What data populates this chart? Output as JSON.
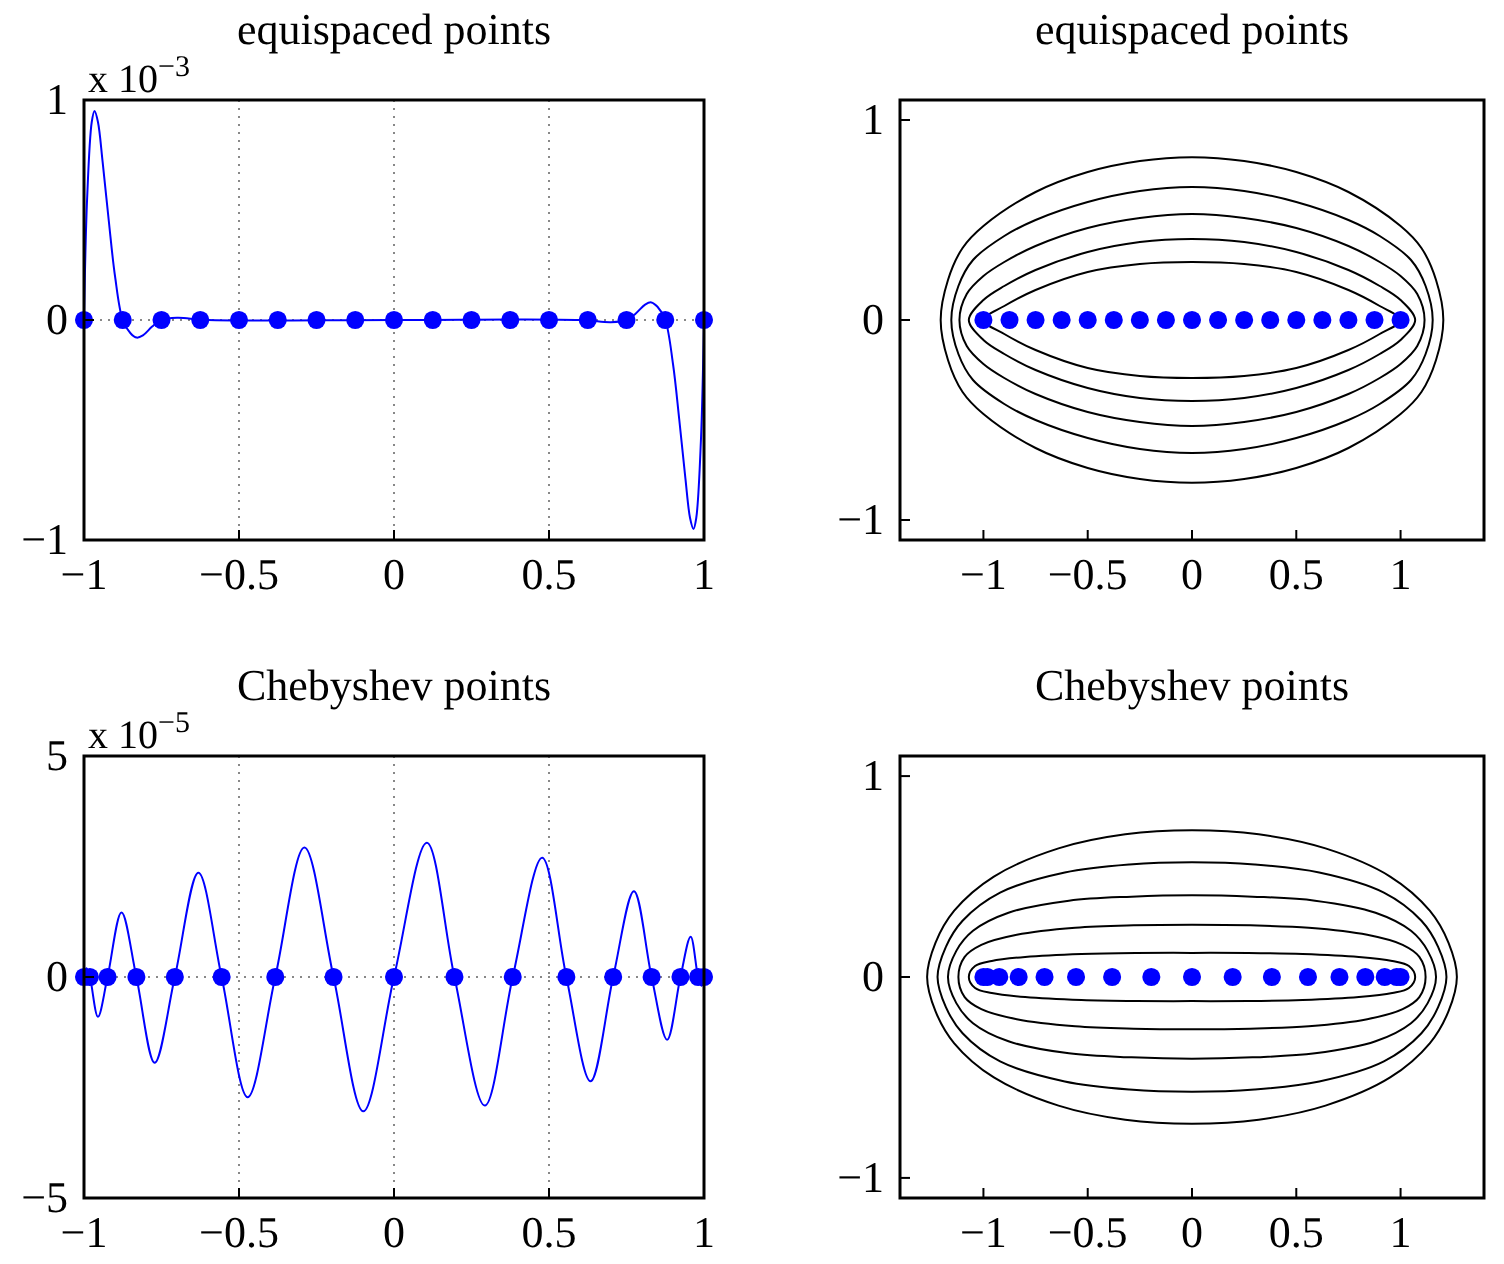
{
  "chart_data": [
    {
      "type": "line",
      "title": "equispaced points",
      "annotations": [
        "x 10$^{−3}$"
      ],
      "xlim": [
        -1,
        1
      ],
      "ylim": [
        -1,
        1
      ],
      "xticks": [
        -1,
        -0.5,
        0,
        0.5,
        1
      ],
      "yticks": [
        -1,
        0,
        1
      ],
      "grid": true,
      "series": [
        {
          "color": "#0000ff",
          "x": [
            -1,
            -0.99,
            -0.975,
            -0.966,
            -0.955,
            -0.94,
            -0.92,
            -0.9,
            -0.875,
            -0.85,
            -0.83,
            -0.81,
            -0.78,
            -0.75,
            -0.7,
            -0.6,
            0,
            0.6,
            0.7,
            0.75,
            0.78,
            0.81,
            0.83,
            0.85,
            0.875,
            0.9,
            0.92,
            0.94,
            0.955,
            0.966,
            0.975,
            0.99,
            1
          ],
          "values": [
            0,
            0.55,
            0.9,
            0.95,
            0.9,
            0.72,
            0.45,
            0.2,
            0,
            -0.06,
            -0.08,
            -0.07,
            -0.03,
            0,
            0.01,
            0,
            0,
            0,
            -0.01,
            0,
            0.03,
            0.07,
            0.08,
            0.06,
            0,
            -0.2,
            -0.45,
            -0.72,
            -0.9,
            -0.95,
            -0.9,
            -0.55,
            0
          ]
        },
        {
          "type": "scatter",
          "marker": "circle",
          "color": "#0000ff",
          "x": [
            -1,
            -0.875,
            -0.75,
            -0.625,
            -0.5,
            -0.375,
            -0.25,
            -0.125,
            0,
            0.125,
            0.25,
            0.375,
            0.5,
            0.625,
            0.75,
            0.875,
            1
          ],
          "values": [
            0,
            0,
            0,
            0,
            0,
            0,
            0,
            0,
            0,
            0,
            0,
            0,
            0,
            0,
            0,
            0,
            0
          ]
        }
      ]
    },
    {
      "type": "scatter",
      "title": "equispaced points",
      "xlim": [
        -1.4,
        1.4
      ],
      "ylim": [
        -1.1,
        1.1
      ],
      "xticks": [
        -1,
        -0.5,
        0,
        0.5,
        1
      ],
      "yticks": [
        -1,
        0,
        1
      ],
      "series": [
        {
          "marker": "circle",
          "color": "#0000ff",
          "x": [
            -1,
            -0.875,
            -0.75,
            -0.625,
            -0.5,
            -0.375,
            -0.25,
            -0.125,
            0,
            0.125,
            0.25,
            0.375,
            0.5,
            0.625,
            0.75,
            0.875,
            1
          ],
          "values": [
            0,
            0,
            0,
            0,
            0,
            0,
            0,
            0,
            0,
            0,
            0,
            0,
            0,
            0,
            0,
            0,
            0
          ]
        }
      ]
    },
    {
      "type": "line",
      "title": "Chebyshev points",
      "annotations": [
        "x 10$^{−5}$"
      ],
      "xlim": [
        -1,
        1
      ],
      "ylim": [
        -5,
        5
      ],
      "xticks": [
        -1,
        -0.5,
        0,
        0.5,
        1
      ],
      "yticks": [
        -5,
        0,
        5
      ],
      "grid": true,
      "series": [
        {
          "color": "#0000ff",
          "x": [
            -1,
            -0.992,
            -0.981,
            -0.955,
            -0.924,
            -0.879,
            -0.831,
            -0.772,
            -0.707,
            -0.631,
            -0.556,
            -0.472,
            -0.383,
            -0.289,
            -0.195,
            -0.099,
            0,
            0.106,
            0.195,
            0.293,
            0.383,
            0.478,
            0.556,
            0.634,
            0.707,
            0.774,
            0.831,
            0.881,
            0.924,
            0.957,
            0.981,
            0.992,
            1
          ],
          "values": [
            0,
            0.2,
            0,
            -0.9,
            0,
            1.46,
            0,
            -1.94,
            0,
            2.36,
            0,
            -2.72,
            0,
            2.93,
            0,
            -3.04,
            0,
            3.04,
            0,
            -2.91,
            0,
            2.7,
            0,
            -2.36,
            0,
            1.94,
            0,
            -1.42,
            0,
            0.91,
            0,
            -0.2,
            0
          ]
        },
        {
          "type": "scatter",
          "marker": "circle",
          "color": "#0000ff",
          "x": [
            -1,
            -0.981,
            -0.924,
            -0.831,
            -0.707,
            -0.556,
            -0.383,
            -0.195,
            0,
            0.195,
            0.383,
            0.556,
            0.707,
            0.831,
            0.924,
            0.981,
            1
          ],
          "values": [
            0,
            0,
            0,
            0,
            0,
            0,
            0,
            0,
            0,
            0,
            0,
            0,
            0,
            0,
            0,
            0,
            0
          ]
        }
      ]
    },
    {
      "type": "scatter",
      "title": "Chebyshev points",
      "xlim": [
        -1.4,
        1.4
      ],
      "ylim": [
        -1.1,
        1.1
      ],
      "xticks": [
        -1,
        -0.5,
        0,
        0.5,
        1
      ],
      "yticks": [
        -1,
        0,
        1
      ],
      "series": [
        {
          "marker": "circle",
          "color": "#0000ff",
          "x": [
            -1,
            -0.981,
            -0.924,
            -0.831,
            -0.707,
            -0.556,
            -0.383,
            -0.195,
            0,
            0.195,
            0.383,
            0.556,
            0.707,
            0.831,
            0.924,
            0.981,
            1
          ],
          "values": [
            0,
            0,
            0,
            0,
            0,
            0,
            0,
            0,
            0,
            0,
            0,
            0,
            0,
            0,
            0,
            0,
            0
          ]
        }
      ]
    }
  ]
}
